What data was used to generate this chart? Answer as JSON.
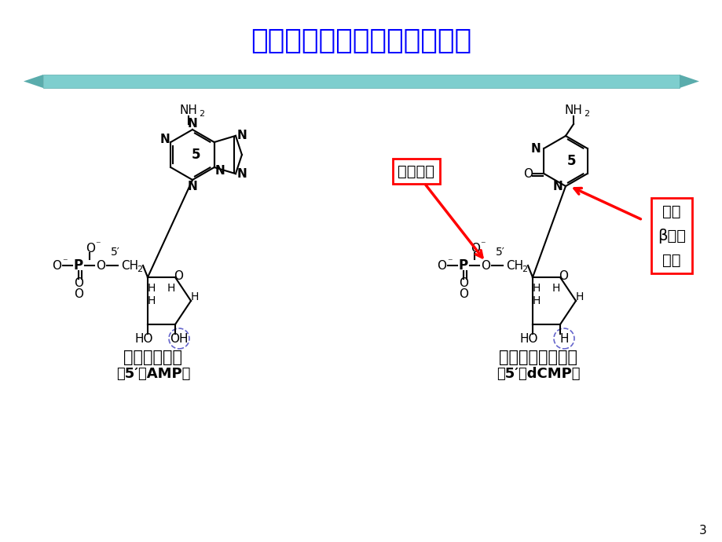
{
  "title": "核糖核苷酸和脱氧核糖核苷酸",
  "title_color": "#0000FF",
  "title_fontsize": 26,
  "bg_color": "#FFFFFF",
  "label_left_1": "腺嘌呤核苷酸",
  "label_left_2": "（5′－AMP）",
  "label_right_1": "胞嘧啶脱氧核苷酸",
  "label_right_2": "（5′－dCMP）",
  "annot_phosphate": "磷酸酯键",
  "annot_beta_1": "均为",
  "annot_beta_2": "β－糖",
  "annot_beta_3": "苷键",
  "page_num": "3",
  "bar_color": "#7ECECE",
  "bar_edge": "#5AACAC"
}
